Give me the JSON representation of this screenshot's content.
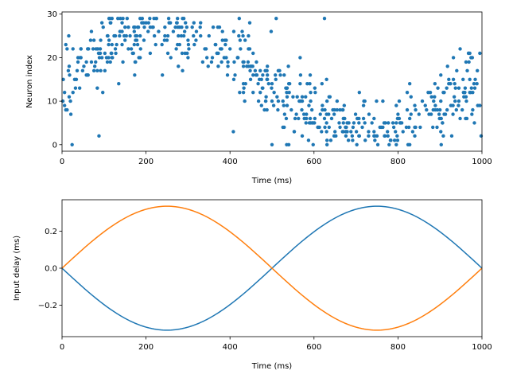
{
  "colors": {
    "blue": "#1f77b4",
    "orange": "#ff7f0e",
    "axis": "#000000",
    "background": "#ffffff"
  },
  "chart_data": [
    {
      "type": "scatter",
      "title": "",
      "xlabel": "Time (ms)",
      "ylabel": "Neuron index",
      "xlim": [
        0,
        1000
      ],
      "ylim": [
        -1.5,
        30.5
      ],
      "xticks": [
        0,
        200,
        400,
        600,
        800,
        1000
      ],
      "yticks": [
        0,
        10,
        20,
        30
      ],
      "grid": false,
      "legend": "none",
      "marker_color": "#1f77b4",
      "n_neurons": 30,
      "density_profile": "firing concentrated around neuron index 27 near 200 ms and around neuron index 2 near 750 ms, following a sinusoidal drift",
      "points": [
        [
          3,
          15
        ],
        [
          6,
          12
        ],
        [
          9,
          8
        ],
        [
          12,
          22
        ],
        [
          16,
          25
        ],
        [
          20,
          10
        ],
        [
          24,
          0
        ],
        [
          32,
          13
        ],
        [
          38,
          20
        ],
        [
          45,
          22
        ],
        [
          52,
          18
        ],
        [
          62,
          16
        ],
        [
          70,
          26
        ],
        [
          78,
          18
        ],
        [
          85,
          22
        ],
        [
          88,
          2
        ],
        [
          92,
          24
        ],
        [
          95,
          20
        ],
        [
          98,
          27
        ],
        [
          102,
          17
        ],
        [
          108,
          25
        ],
        [
          112,
          29
        ],
        [
          118,
          21
        ],
        [
          124,
          25
        ],
        [
          130,
          23
        ],
        [
          138,
          26
        ],
        [
          145,
          29
        ],
        [
          150,
          24
        ],
        [
          158,
          27
        ],
        [
          165,
          22
        ],
        [
          172,
          26
        ],
        [
          178,
          25
        ],
        [
          182,
          27
        ],
        [
          186,
          20
        ],
        [
          190,
          28
        ],
        [
          195,
          24
        ],
        [
          200,
          28
        ],
        [
          205,
          26
        ],
        [
          210,
          21
        ],
        [
          215,
          27
        ],
        [
          220,
          25
        ],
        [
          225,
          29
        ],
        [
          230,
          26
        ],
        [
          238,
          23
        ],
        [
          245,
          27
        ],
        [
          250,
          24
        ],
        [
          258,
          28
        ],
        [
          265,
          26
        ],
        [
          272,
          22
        ],
        [
          280,
          27
        ],
        [
          290,
          25
        ],
        [
          300,
          24
        ],
        [
          310,
          27
        ],
        [
          320,
          26
        ],
        [
          330,
          28
        ],
        [
          340,
          22
        ],
        [
          350,
          25
        ],
        [
          358,
          20
        ],
        [
          365,
          23
        ],
        [
          372,
          18
        ],
        [
          380,
          22
        ],
        [
          388,
          24
        ],
        [
          395,
          19
        ],
        [
          400,
          22
        ],
        [
          408,
          3
        ],
        [
          412,
          16
        ],
        [
          418,
          20
        ],
        [
          425,
          22
        ],
        [
          432,
          14
        ],
        [
          440,
          18
        ],
        [
          448,
          17
        ],
        [
          455,
          12
        ],
        [
          462,
          16
        ],
        [
          470,
          15
        ],
        [
          478,
          13
        ],
        [
          485,
          10
        ],
        [
          492,
          14
        ],
        [
          500,
          0
        ],
        [
          505,
          12
        ],
        [
          510,
          29
        ],
        [
          515,
          17
        ],
        [
          520,
          16
        ],
        [
          528,
          9
        ],
        [
          535,
          13
        ],
        [
          542,
          14
        ],
        [
          550,
          11
        ],
        [
          558,
          7
        ],
        [
          565,
          10
        ],
        [
          572,
          2
        ],
        [
          580,
          11
        ],
        [
          588,
          9
        ],
        [
          595,
          8
        ],
        [
          602,
          6
        ],
        [
          610,
          4
        ],
        [
          618,
          3
        ],
        [
          625,
          29
        ],
        [
          630,
          5
        ],
        [
          636,
          4
        ],
        [
          642,
          6
        ],
        [
          648,
          2
        ],
        [
          655,
          10
        ],
        [
          662,
          4
        ],
        [
          668,
          8
        ],
        [
          675,
          4
        ],
        [
          682,
          1
        ],
        [
          688,
          3
        ],
        [
          695,
          5
        ],
        [
          702,
          0
        ],
        [
          708,
          2
        ],
        [
          715,
          4
        ],
        [
          722,
          1
        ],
        [
          730,
          3
        ],
        [
          738,
          5
        ],
        [
          745,
          2
        ],
        [
          752,
          0
        ],
        [
          760,
          4
        ],
        [
          768,
          2
        ],
        [
          775,
          3
        ],
        [
          782,
          1
        ],
        [
          790,
          4
        ],
        [
          798,
          2
        ],
        [
          805,
          5
        ],
        [
          812,
          3
        ],
        [
          820,
          4
        ],
        [
          828,
          6
        ],
        [
          835,
          3
        ],
        [
          842,
          8
        ],
        [
          850,
          7
        ],
        [
          858,
          10
        ],
        [
          865,
          9
        ],
        [
          872,
          12
        ],
        [
          880,
          11
        ],
        [
          888,
          14
        ],
        [
          895,
          13
        ],
        [
          902,
          16
        ],
        [
          910,
          12
        ],
        [
          918,
          18
        ],
        [
          925,
          14
        ],
        [
          932,
          20
        ],
        [
          940,
          17
        ],
        [
          948,
          22
        ],
        [
          955,
          15
        ],
        [
          962,
          19
        ],
        [
          968,
          21
        ],
        [
          975,
          13
        ],
        [
          982,
          5
        ],
        [
          988,
          14
        ],
        [
          995,
          9
        ],
        [
          998,
          2
        ]
      ]
    },
    {
      "type": "line",
      "title": "",
      "xlabel": "Time (ms)",
      "ylabel": "Input delay (ms)",
      "xlim": [
        0,
        1000
      ],
      "ylim": [
        -0.37,
        0.37
      ],
      "xticks": [
        0,
        200,
        400,
        600,
        800,
        1000
      ],
      "yticks": [
        -0.2,
        0.0,
        0.2
      ],
      "ytick_labels": [
        "−0.2",
        "0.0",
        "0.2"
      ],
      "grid": false,
      "legend": "none",
      "series": [
        {
          "function": "-A*sin(2*pi*t/1000)",
          "amplitude": 0.335,
          "color": "#1f77b4"
        },
        {
          "function": "A*sin(2*pi*t/1000)",
          "amplitude": 0.335,
          "color": "#ff7f0e"
        }
      ]
    }
  ]
}
